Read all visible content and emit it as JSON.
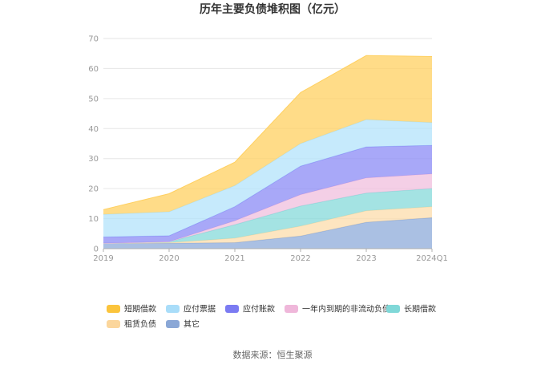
{
  "chart_data": {
    "type": "area",
    "stacked": true,
    "title": "历年主要负债堆积图（亿元）",
    "categories": [
      "2019",
      "2020",
      "2021",
      "2022",
      "2023",
      "2024Q1"
    ],
    "ylim": [
      0,
      70
    ],
    "yticks": [
      0,
      10,
      20,
      30,
      40,
      50,
      60,
      70
    ],
    "series": [
      {
        "name": "其它",
        "color": "#8eabd9",
        "values": [
          1.8,
          1.8,
          2.0,
          4.2,
          8.8,
          10.3
        ]
      },
      {
        "name": "租赁负债",
        "color": "#fcdcab",
        "values": [
          0.0,
          0.2,
          1.5,
          3.3,
          3.8,
          3.7
        ]
      },
      {
        "name": "长期借款",
        "color": "#86dada",
        "values": [
          0.0,
          0.3,
          4.5,
          6.7,
          5.9,
          6.0
        ]
      },
      {
        "name": "一年内到期的非流动负债",
        "color": "#f0bfdd",
        "values": [
          0.0,
          0.0,
          1.3,
          3.8,
          5.1,
          4.9
        ]
      },
      {
        "name": "应付账款",
        "color": "#8b8bf5",
        "values": [
          2.1,
          2.0,
          4.7,
          9.5,
          10.3,
          9.5
        ]
      },
      {
        "name": "应付票据",
        "color": "#b3e3fb",
        "values": [
          7.5,
          8.0,
          7.0,
          7.5,
          9.1,
          7.6
        ]
      },
      {
        "name": "短期借款",
        "color": "#ffd060",
        "values": [
          1.6,
          6.0,
          7.8,
          17.0,
          21.3,
          22.0
        ]
      }
    ],
    "legend": {
      "position": "bottom",
      "items": [
        {
          "label": "短期借款",
          "color": "#fbc43c"
        },
        {
          "label": "应付票据",
          "color": "#a9ddf9"
        },
        {
          "label": "应付账款",
          "color": "#7b7bf2"
        },
        {
          "label": "一年内到期的非流动负债",
          "color": "#efb7da"
        },
        {
          "label": "长期借款",
          "color": "#80d8d8"
        },
        {
          "label": "租赁负债",
          "color": "#fbd69c"
        },
        {
          "label": "其它",
          "color": "#8aa7d6"
        }
      ]
    }
  },
  "source_text": "数据来源：恒生聚源"
}
